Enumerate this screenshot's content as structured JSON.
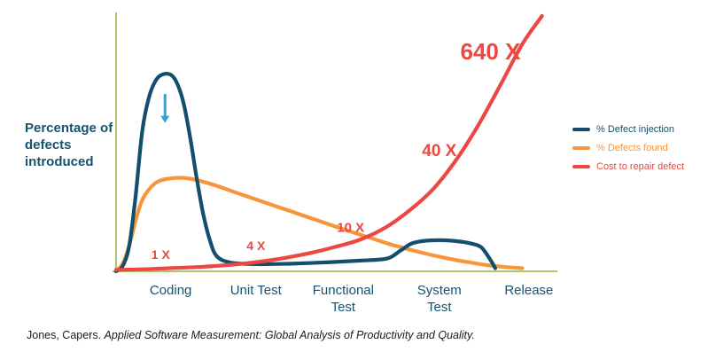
{
  "chart_data": {
    "type": "line",
    "title": "",
    "xlabel": "",
    "ylabel": "Percentage of defects introduced",
    "ylim": [
      0,
      1
    ],
    "grid": false,
    "legend_position": "right",
    "axis_color": "#A9C966",
    "annotation_color": "#EC4742",
    "x_categories": [
      {
        "label": "Coding",
        "x": 0.125
      },
      {
        "label": "Unit Test",
        "x": 0.32
      },
      {
        "label": "Functional Test",
        "x": 0.52
      },
      {
        "label": "System Test",
        "x": 0.74
      },
      {
        "label": "Release",
        "x": 0.945
      }
    ],
    "series": [
      {
        "name": "% Defects found",
        "color": "#F6953B",
        "points": [
          [
            0.0,
            0.0
          ],
          [
            0.015,
            0.03
          ],
          [
            0.03,
            0.1
          ],
          [
            0.045,
            0.2
          ],
          [
            0.06,
            0.28
          ],
          [
            0.08,
            0.33
          ],
          [
            0.1,
            0.355
          ],
          [
            0.13,
            0.365
          ],
          [
            0.16,
            0.365
          ],
          [
            0.19,
            0.355
          ],
          [
            0.23,
            0.335
          ],
          [
            0.28,
            0.305
          ],
          [
            0.34,
            0.27
          ],
          [
            0.4,
            0.235
          ],
          [
            0.46,
            0.2
          ],
          [
            0.52,
            0.165
          ],
          [
            0.58,
            0.132
          ],
          [
            0.64,
            0.1
          ],
          [
            0.7,
            0.073
          ],
          [
            0.76,
            0.05
          ],
          [
            0.82,
            0.032
          ],
          [
            0.87,
            0.02
          ],
          [
            0.93,
            0.012
          ]
        ]
      },
      {
        "name": "% Defect injection",
        "color": "#134F6D",
        "points": [
          [
            0.0,
            0.0
          ],
          [
            0.015,
            0.02
          ],
          [
            0.03,
            0.1
          ],
          [
            0.045,
            0.3
          ],
          [
            0.06,
            0.55
          ],
          [
            0.075,
            0.68
          ],
          [
            0.09,
            0.745
          ],
          [
            0.105,
            0.77
          ],
          [
            0.125,
            0.77
          ],
          [
            0.14,
            0.735
          ],
          [
            0.155,
            0.655
          ],
          [
            0.17,
            0.52
          ],
          [
            0.185,
            0.36
          ],
          [
            0.2,
            0.22
          ],
          [
            0.215,
            0.12
          ],
          [
            0.23,
            0.06
          ],
          [
            0.26,
            0.035
          ],
          [
            0.32,
            0.028
          ],
          [
            0.4,
            0.03
          ],
          [
            0.48,
            0.035
          ],
          [
            0.56,
            0.042
          ],
          [
            0.62,
            0.05
          ],
          [
            0.65,
            0.08
          ],
          [
            0.675,
            0.108
          ],
          [
            0.7,
            0.118
          ],
          [
            0.74,
            0.122
          ],
          [
            0.78,
            0.118
          ],
          [
            0.81,
            0.11
          ],
          [
            0.835,
            0.095
          ],
          [
            0.855,
            0.05
          ],
          [
            0.868,
            0.012
          ]
        ]
      },
      {
        "name": "Cost to repair defect",
        "color": "#EC4742",
        "points": [
          [
            0.0,
            0.006
          ],
          [
            0.06,
            0.008
          ],
          [
            0.12,
            0.012
          ],
          [
            0.2,
            0.018
          ],
          [
            0.28,
            0.028
          ],
          [
            0.36,
            0.045
          ],
          [
            0.44,
            0.07
          ],
          [
            0.5,
            0.095
          ],
          [
            0.56,
            0.125
          ],
          [
            0.62,
            0.175
          ],
          [
            0.68,
            0.25
          ],
          [
            0.73,
            0.33
          ],
          [
            0.78,
            0.44
          ],
          [
            0.83,
            0.575
          ],
          [
            0.88,
            0.73
          ],
          [
            0.93,
            0.89
          ],
          [
            0.975,
            1.0
          ]
        ]
      }
    ],
    "legend_order": [
      "% Defect injection",
      "% Defects found",
      "Cost to repair defect"
    ],
    "annotations": [
      {
        "label": "1 X",
        "x": 0.102,
        "y": 0.062,
        "size": 14
      },
      {
        "label": "4 X",
        "x": 0.32,
        "y": 0.096,
        "size": 14
      },
      {
        "label": "10 X",
        "x": 0.537,
        "y": 0.168,
        "size": 15
      },
      {
        "label": "40 X",
        "x": 0.74,
        "y": 0.468,
        "size": 19
      },
      {
        "label": "640 X",
        "x": 0.857,
        "y": 0.853,
        "size": 26
      }
    ],
    "arrow": {
      "symbol": "down-arrow",
      "x": 0.112,
      "y_top": 0.69,
      "y_bottom": 0.595,
      "color": "#2FA3DC"
    }
  },
  "citation": {
    "author": "Jones, Capers. ",
    "title": "Applied Software Measurement: Global Analysis of Productivity and Quality."
  }
}
